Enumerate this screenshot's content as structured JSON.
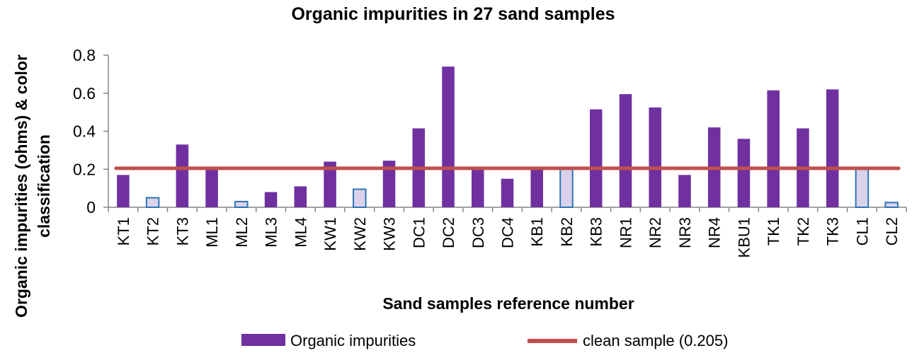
{
  "chart_data": {
    "type": "bar",
    "title": "Organic impurities in 27 sand samples",
    "xlabel": "Sand samples  reference number",
    "ylabel_line1": "Organic impurities (ohms) & color",
    "ylabel_line2": "classification",
    "ylim": [
      0,
      0.8
    ],
    "yticks": [
      "0",
      "0.2",
      "0.4",
      "0.6",
      "0.8"
    ],
    "categories": [
      "KT1",
      "KT2",
      "KT3",
      "ML1",
      "ML2",
      "ML3",
      "ML4",
      "KW1",
      "KW2",
      "KW3",
      "DC1",
      "DC2",
      "DC3",
      "DC4",
      "KB1",
      "KB2",
      "KB3",
      "NR1",
      "NR2",
      "NR3",
      "NR4",
      "KBU1",
      "TK1",
      "TK2",
      "TK3",
      "CL1",
      "CL2"
    ],
    "series": [
      {
        "name": "Organic impurities",
        "values": [
          0.17,
          0.05,
          0.33,
          0.2,
          0.03,
          0.08,
          0.11,
          0.24,
          0.095,
          0.245,
          0.415,
          0.74,
          0.2,
          0.15,
          0.2,
          0.2,
          0.515,
          0.595,
          0.525,
          0.17,
          0.42,
          0.36,
          0.615,
          0.415,
          0.62,
          0.2,
          0.025
        ],
        "light_bars": [
          1,
          4,
          8,
          15,
          25,
          26
        ]
      }
    ],
    "reference_line": {
      "name": "clean sample (0.205)",
      "value": 0.205
    },
    "legend_position": "bottom",
    "colors": {
      "bar": "#7030A0",
      "bar_light": "#D9D2EA",
      "bar_light_border": "#2E75B6",
      "line": "#C0504D",
      "axis": "#868686"
    }
  }
}
